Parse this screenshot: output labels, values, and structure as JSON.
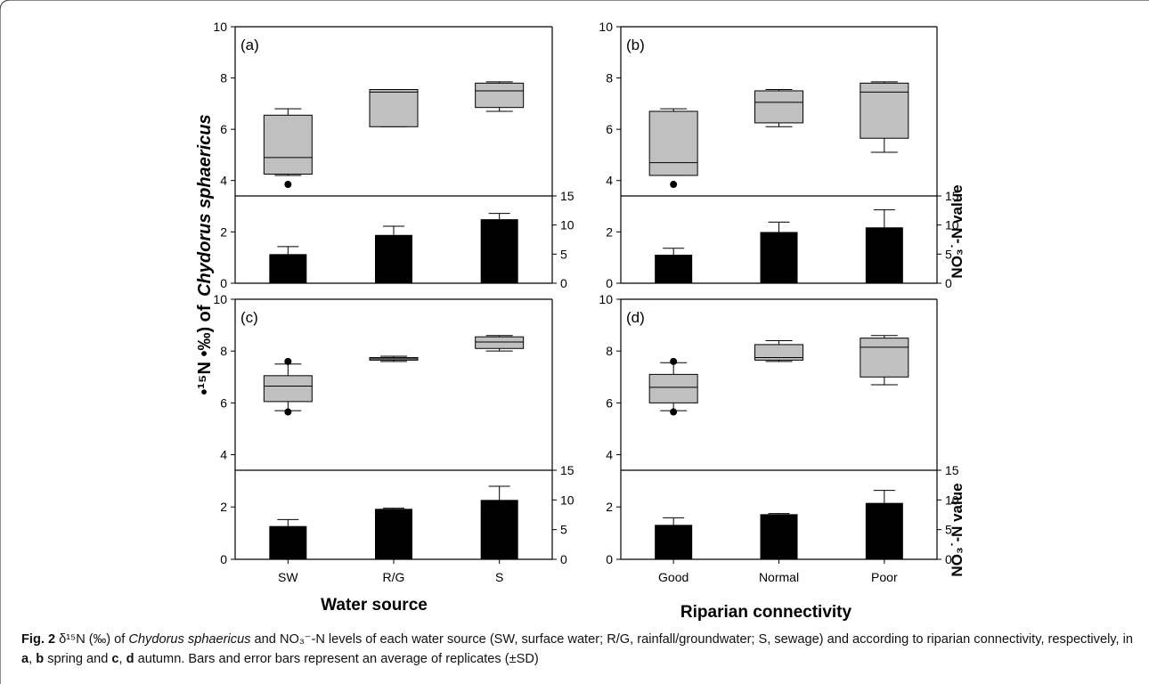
{
  "figure": {
    "left_axis_title": "•¹⁵N •‰) of",
    "left_axis_title_species": "Chydorus sphaericus",
    "right_axis_title": "NO₃˙-N value",
    "bottom_titles": [
      "Water source",
      "Riparian connectivity"
    ]
  },
  "chart_data": [
    {
      "panel": "(a)",
      "type": "box",
      "categories": [
        "SW",
        "R/G",
        "S"
      ],
      "ylim": [
        3.4,
        10
      ],
      "yticks": [
        4,
        6,
        8,
        10
      ],
      "boxes": [
        {
          "whisker_low": 4.2,
          "q1": 4.25,
          "median": 4.9,
          "q3": 6.55,
          "whisker_high": 6.8,
          "outliers": [
            3.85
          ]
        },
        {
          "whisker_low": 6.1,
          "q1": 6.1,
          "median": 7.45,
          "q3": 7.55,
          "whisker_high": 7.55,
          "outliers": []
        },
        {
          "whisker_low": 6.7,
          "q1": 6.85,
          "median": 7.5,
          "q3": 7.8,
          "whisker_high": 7.85,
          "outliers": []
        }
      ],
      "bars": {
        "ylim": [
          0,
          15
        ],
        "yticks": [
          0,
          5,
          10,
          15
        ],
        "left_ylim": [
          0,
          3.4
        ],
        "left_yticks": [
          0,
          2
        ],
        "values": [
          5.0,
          8.3,
          11.0
        ],
        "sd": [
          1.3,
          1.5,
          1.0
        ]
      }
    },
    {
      "panel": "(b)",
      "type": "box",
      "categories": [
        "Good",
        "Normal",
        "Poor"
      ],
      "ylim": [
        3.4,
        10
      ],
      "yticks": [
        4,
        6,
        8,
        10
      ],
      "boxes": [
        {
          "whisker_low": 4.2,
          "q1": 4.2,
          "median": 4.7,
          "q3": 6.7,
          "whisker_high": 6.8,
          "outliers": [
            3.85
          ]
        },
        {
          "whisker_low": 6.1,
          "q1": 6.25,
          "median": 7.05,
          "q3": 7.5,
          "whisker_high": 7.55,
          "outliers": []
        },
        {
          "whisker_low": 5.1,
          "q1": 5.65,
          "median": 7.45,
          "q3": 7.8,
          "whisker_high": 7.85,
          "outliers": []
        }
      ],
      "bars": {
        "ylim": [
          0,
          15
        ],
        "yticks": [
          0,
          5,
          10,
          15
        ],
        "left_ylim": [
          0,
          3.4
        ],
        "left_yticks": [
          0,
          2
        ],
        "values": [
          4.9,
          8.8,
          9.6
        ],
        "sd": [
          1.1,
          1.7,
          3.0
        ]
      }
    },
    {
      "panel": "(c)",
      "type": "box",
      "categories": [
        "SW",
        "R/G",
        "S"
      ],
      "ylim": [
        3.4,
        10
      ],
      "yticks": [
        4,
        6,
        8,
        10
      ],
      "boxes": [
        {
          "whisker_low": 5.7,
          "q1": 6.05,
          "median": 6.65,
          "q3": 7.05,
          "whisker_high": 7.5,
          "outliers": [
            5.65,
            7.6
          ]
        },
        {
          "whisker_low": 7.6,
          "q1": 7.65,
          "median": 7.7,
          "q3": 7.75,
          "whisker_high": 7.8,
          "outliers": []
        },
        {
          "whisker_low": 8.0,
          "q1": 8.1,
          "median": 8.35,
          "q3": 8.55,
          "whisker_high": 8.6,
          "outliers": []
        }
      ],
      "bars": {
        "ylim": [
          0,
          15
        ],
        "yticks": [
          0,
          5,
          10,
          15
        ],
        "left_ylim": [
          0,
          3.4
        ],
        "left_yticks": [
          0,
          2
        ],
        "values": [
          5.6,
          8.5,
          10.0
        ],
        "sd": [
          1.1,
          0.1,
          2.3
        ]
      }
    },
    {
      "panel": "(d)",
      "type": "box",
      "categories": [
        "Good",
        "Normal",
        "Poor"
      ],
      "ylim": [
        3.4,
        10
      ],
      "yticks": [
        4,
        6,
        8,
        10
      ],
      "boxes": [
        {
          "whisker_low": 5.7,
          "q1": 6.0,
          "median": 6.6,
          "q3": 7.1,
          "whisker_high": 7.55,
          "outliers": [
            5.65,
            7.6
          ]
        },
        {
          "whisker_low": 7.6,
          "q1": 7.65,
          "median": 7.75,
          "q3": 8.25,
          "whisker_high": 8.4,
          "outliers": []
        },
        {
          "whisker_low": 6.7,
          "q1": 7.0,
          "median": 8.15,
          "q3": 8.5,
          "whisker_high": 8.6,
          "outliers": []
        }
      ],
      "bars": {
        "ylim": [
          0,
          15
        ],
        "yticks": [
          0,
          5,
          10,
          15
        ],
        "left_ylim": [
          0,
          3.4
        ],
        "left_yticks": [
          0,
          2
        ],
        "values": [
          5.8,
          7.6,
          9.5
        ],
        "sd": [
          1.2,
          0.1,
          2.1
        ]
      }
    }
  ],
  "caption": {
    "label": "Fig. 2",
    "text_1": " δ¹⁵N (‰) of ",
    "species": "Chydorus sphaericus",
    "text_2": " and NO₃⁻-N levels of each water source (SW, surface water; R/G, rainfall/groundwater; S, sewage) and according to riparian connectivity, respectively, in ",
    "a": "a",
    "comma1": ", ",
    "b": "b",
    "text_3": " spring and ",
    "c": "c",
    "comma2": ", ",
    "d": "d",
    "text_4": " autumn. Bars and error bars represent an average of replicates (±SD)"
  }
}
